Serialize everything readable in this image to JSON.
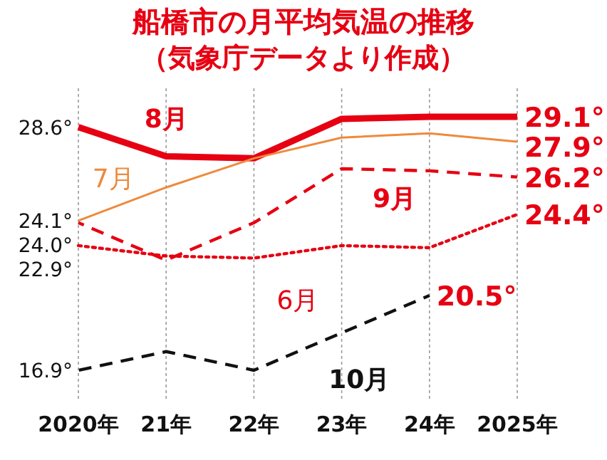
{
  "chart_data": {
    "type": "line",
    "title": "船橋市の月平均気温の推移",
    "subtitle": "（気象庁データより作成）",
    "categories": [
      "2020年",
      "21年",
      "22年",
      "23年",
      "24年",
      "2025年"
    ],
    "grid": "x",
    "series": [
      {
        "name": "8月",
        "color": "#e60012",
        "line_style": "solid",
        "values": [
          28.6,
          27.2,
          27.1,
          29.0,
          29.1,
          29.1
        ],
        "value_labels": [
          "28.6°",
          null,
          null,
          null,
          null,
          "29.1°"
        ]
      },
      {
        "name": "7月",
        "color": "#ee8a3c",
        "line_style": "solid",
        "values": [
          24.1,
          25.7,
          27.1,
          28.1,
          28.3,
          27.9
        ],
        "value_labels": [
          "24.1°",
          null,
          null,
          null,
          null,
          "27.9°"
        ]
      },
      {
        "name": "9月",
        "color": "#e60012",
        "line_style": "dashed",
        "values": [
          24.0,
          22.2,
          24.0,
          26.6,
          26.5,
          26.2
        ],
        "value_labels": [
          "24.0°",
          null,
          null,
          null,
          null,
          "26.2°"
        ]
      },
      {
        "name": "6月",
        "color": "#e60012",
        "line_style": "dotted",
        "values": [
          22.9,
          22.4,
          22.3,
          22.9,
          22.8,
          24.4
        ],
        "value_labels": [
          "22.9°",
          null,
          null,
          null,
          null,
          "24.4°"
        ]
      },
      {
        "name": "10月",
        "color": "#111111",
        "line_style": "dashed",
        "values": [
          16.9,
          17.8,
          16.9,
          18.7,
          20.5,
          null
        ],
        "value_labels": [
          "16.9°",
          null,
          null,
          null,
          "20.5°",
          null
        ]
      }
    ]
  }
}
